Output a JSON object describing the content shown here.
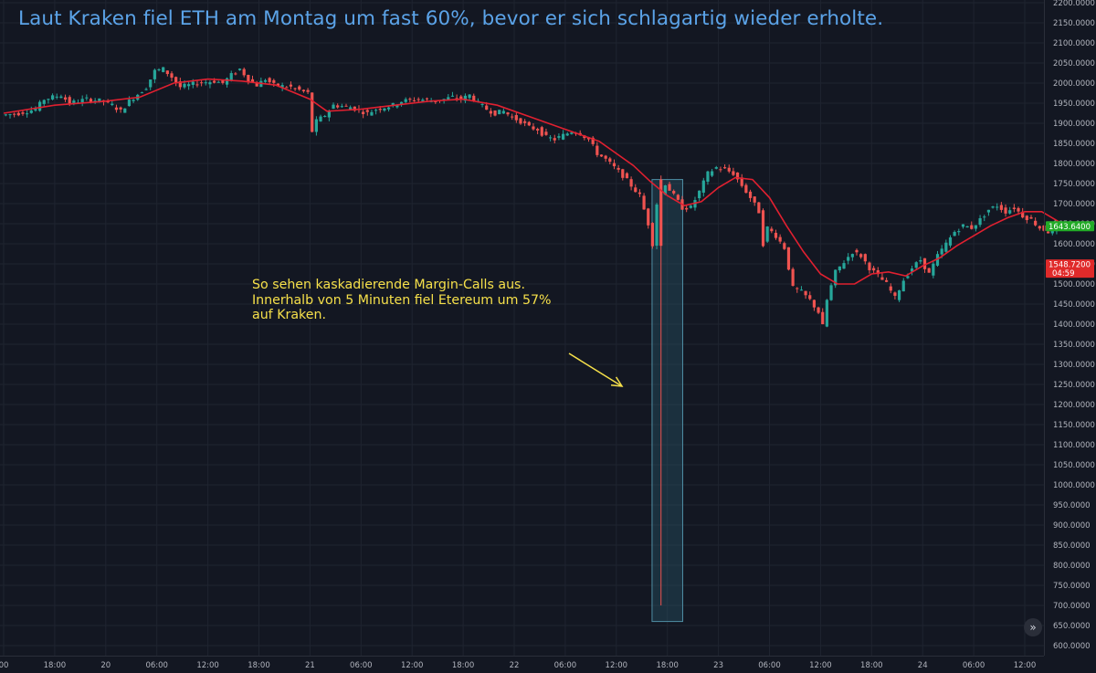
{
  "chart_data": {
    "type": "candlestick",
    "title": "Laut Kraken fiel ETH am Montag um fast 60%, bevor er sich schlagartig wieder erholte.",
    "annotation": {
      "lines": [
        "So sehen kaskadierende Margin-Calls aus.",
        "Innerhalb von 5 Minuten fiel Etereum um 57%",
        "auf Kraken."
      ]
    },
    "ylim": [
      580,
      2210
    ],
    "y_ticks": [
      600,
      650,
      700,
      750,
      800,
      850,
      900,
      950,
      1000,
      1050,
      1100,
      1150,
      1200,
      1250,
      1300,
      1350,
      1400,
      1450,
      1500,
      1550,
      1600,
      1650,
      1700,
      1750,
      1800,
      1850,
      1900,
      1950,
      2000,
      2050,
      2100,
      2150,
      2200
    ],
    "x_ticks": [
      "00",
      "18:00",
      "20",
      "06:00",
      "12:00",
      "18:00",
      "21",
      "06:00",
      "12:00",
      "18:00",
      "22",
      "06:00",
      "12:00",
      "18:00",
      "23",
      "06:00",
      "12:00",
      "18:00",
      "24",
      "06:00",
      "12:00"
    ],
    "x_tick_hours": [
      12,
      18,
      24,
      30,
      36,
      42,
      48,
      54,
      60,
      66,
      72,
      78,
      84,
      90,
      96,
      102,
      108,
      114,
      120,
      126,
      132
    ],
    "x_range_hours": [
      12,
      137
    ],
    "price_series": [
      [
        12,
        1920
      ],
      [
        14,
        1925
      ],
      [
        16,
        1935
      ],
      [
        17,
        1960
      ],
      [
        19,
        1970
      ],
      [
        20,
        1950
      ],
      [
        22,
        1960
      ],
      [
        24,
        1955
      ],
      [
        25,
        1945
      ],
      [
        26,
        1930
      ],
      [
        27,
        1955
      ],
      [
        29,
        1990
      ],
      [
        30,
        2030
      ],
      [
        31,
        2035
      ],
      [
        32,
        2015
      ],
      [
        33,
        1990
      ],
      [
        35,
        2000
      ],
      [
        37,
        2005
      ],
      [
        38,
        2000
      ],
      [
        39,
        2020
      ],
      [
        40,
        2035
      ],
      [
        41,
        2010
      ],
      [
        42,
        1995
      ],
      [
        43,
        2010
      ],
      [
        44,
        1995
      ],
      [
        46,
        1990
      ],
      [
        48,
        1975
      ],
      [
        48.5,
        1880
      ],
      [
        49,
        1905
      ],
      [
        50,
        1920
      ],
      [
        51,
        1945
      ],
      [
        53,
        1940
      ],
      [
        55,
        1925
      ],
      [
        56,
        1935
      ],
      [
        58,
        1945
      ],
      [
        59,
        1955
      ],
      [
        61,
        1960
      ],
      [
        63,
        1955
      ],
      [
        64,
        1960
      ],
      [
        65,
        1965
      ],
      [
        66,
        1960
      ],
      [
        67,
        1970
      ],
      [
        68,
        1950
      ],
      [
        69,
        1935
      ],
      [
        70,
        1925
      ],
      [
        71,
        1930
      ],
      [
        72,
        1915
      ],
      [
        73,
        1905
      ],
      [
        74,
        1890
      ],
      [
        75,
        1885
      ],
      [
        76,
        1865
      ],
      [
        77,
        1860
      ],
      [
        78,
        1870
      ],
      [
        79,
        1880
      ],
      [
        80,
        1875
      ],
      [
        81,
        1860
      ],
      [
        82,
        1825
      ],
      [
        83,
        1810
      ],
      [
        84,
        1790
      ],
      [
        85,
        1770
      ],
      [
        86,
        1745
      ],
      [
        87,
        1720
      ],
      [
        88,
        1650
      ],
      [
        88.5,
        1600
      ],
      [
        89,
        1700
      ],
      [
        90,
        1750
      ],
      [
        91,
        1720
      ],
      [
        92,
        1690
      ],
      [
        93,
        1690
      ],
      [
        94,
        1730
      ],
      [
        95,
        1775
      ],
      [
        96,
        1790
      ],
      [
        97,
        1785
      ],
      [
        98,
        1775
      ],
      [
        99,
        1745
      ],
      [
        100,
        1715
      ],
      [
        101,
        1680
      ],
      [
        101.5,
        1600
      ],
      [
        102,
        1640
      ],
      [
        103,
        1620
      ],
      [
        104,
        1590
      ],
      [
        105,
        1490
      ],
      [
        106,
        1480
      ],
      [
        107,
        1460
      ],
      [
        108,
        1430
      ],
      [
        108.5,
        1395
      ],
      [
        109,
        1460
      ],
      [
        110,
        1530
      ],
      [
        111,
        1555
      ],
      [
        112,
        1580
      ],
      [
        113,
        1570
      ],
      [
        114,
        1540
      ],
      [
        115,
        1520
      ],
      [
        116,
        1500
      ],
      [
        117,
        1465
      ],
      [
        118,
        1510
      ],
      [
        119,
        1540
      ],
      [
        120,
        1560
      ],
      [
        121,
        1525
      ],
      [
        122,
        1570
      ],
      [
        123,
        1600
      ],
      [
        124,
        1630
      ],
      [
        125,
        1645
      ],
      [
        126,
        1640
      ],
      [
        127,
        1660
      ],
      [
        128,
        1685
      ],
      [
        129,
        1695
      ],
      [
        130,
        1680
      ],
      [
        131,
        1690
      ],
      [
        132,
        1670
      ],
      [
        133,
        1660
      ],
      [
        134,
        1640
      ],
      [
        135,
        1630
      ],
      [
        136,
        1640
      ]
    ],
    "moving_average": [
      [
        12,
        1925
      ],
      [
        18,
        1945
      ],
      [
        24,
        1955
      ],
      [
        28,
        1965
      ],
      [
        32,
        2000
      ],
      [
        36,
        2010
      ],
      [
        40,
        2005
      ],
      [
        44,
        1995
      ],
      [
        48,
        1960
      ],
      [
        50,
        1930
      ],
      [
        54,
        1935
      ],
      [
        58,
        1945
      ],
      [
        62,
        1955
      ],
      [
        66,
        1960
      ],
      [
        70,
        1945
      ],
      [
        74,
        1915
      ],
      [
        78,
        1885
      ],
      [
        82,
        1855
      ],
      [
        86,
        1795
      ],
      [
        88,
        1755
      ],
      [
        90,
        1720
      ],
      [
        92,
        1695
      ],
      [
        94,
        1705
      ],
      [
        96,
        1740
      ],
      [
        98,
        1765
      ],
      [
        100,
        1760
      ],
      [
        102,
        1715
      ],
      [
        104,
        1645
      ],
      [
        106,
        1580
      ],
      [
        108,
        1525
      ],
      [
        110,
        1500
      ],
      [
        112,
        1500
      ],
      [
        114,
        1525
      ],
      [
        116,
        1530
      ],
      [
        118,
        1520
      ],
      [
        120,
        1545
      ],
      [
        122,
        1565
      ],
      [
        124,
        1595
      ],
      [
        126,
        1620
      ],
      [
        128,
        1645
      ],
      [
        130,
        1665
      ],
      [
        132,
        1680
      ],
      [
        134,
        1680
      ],
      [
        136,
        1655
      ]
    ],
    "flash_crash": {
      "hour": 89,
      "open": 1760,
      "high": 1770,
      "low": 700,
      "close": 1595
    },
    "highlight_zone": {
      "hour_start": 88.2,
      "hour_end": 91.8,
      "price_top": 1760,
      "price_bottom": 660
    },
    "price_labels": [
      {
        "value": 1643.64,
        "text": "1643.6400",
        "color": "#22ab27",
        "text_color": "#ffffff"
      },
      {
        "value": 1548.72,
        "text": "1548.7200",
        "sub": "04:59",
        "color": "#e02a2a",
        "text_color": "#ffffff"
      }
    ],
    "colors": {
      "background": "#131722",
      "grid": "#1f2430",
      "up": "#26a69a",
      "down": "#ef5350",
      "ma": "#e02030",
      "highlight_fill": "#2a5f74",
      "highlight_border": "#4f8fa5",
      "arrow": "#f6e04a"
    }
  },
  "nav_button_icon": "double-chevron-right-icon",
  "nav_button_glyph": "»"
}
